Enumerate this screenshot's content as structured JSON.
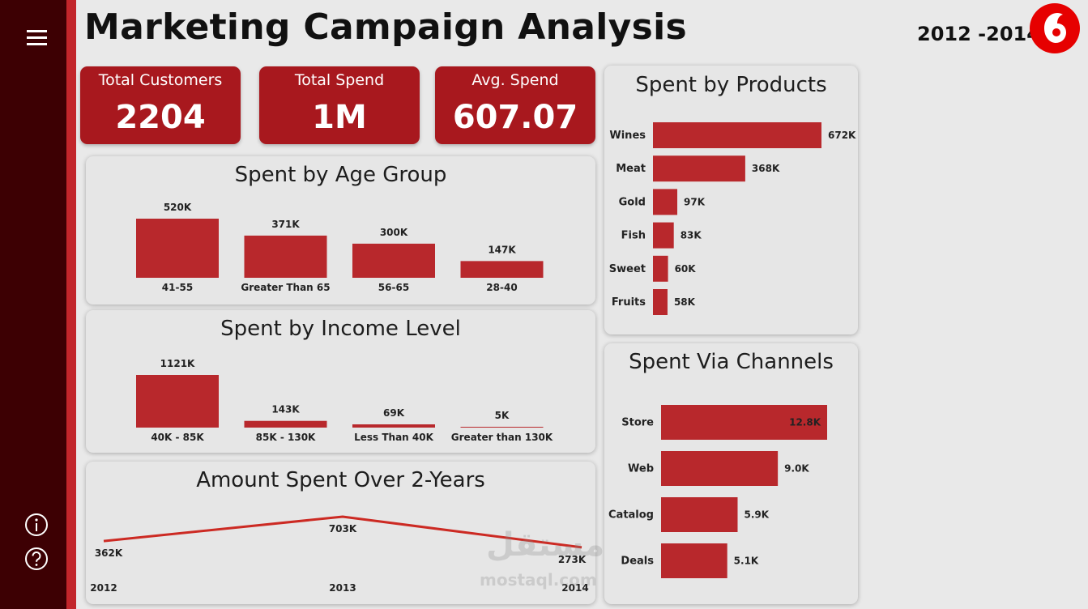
{
  "header": {
    "title": "Marketing Campaign Analysis",
    "year_range": "2012 -2014"
  },
  "kpis": [
    {
      "label": "Total Customers",
      "value": "2204"
    },
    {
      "label": "Total Spend",
      "value": "1M"
    },
    {
      "label": "Avg. Spend",
      "value": "607.07"
    }
  ],
  "colors": {
    "bar": "#b8282c",
    "kpi_bg": "#a8181e",
    "sidebar": "#3d0003",
    "sidebar_edge": "#c2262b",
    "line": "#cc2a23",
    "logo": "#e60000"
  },
  "icons": {
    "menu": "hamburger-menu-icon",
    "info": "info-icon",
    "help": "help-icon",
    "logo": "vodafone-logo"
  },
  "watermark": {
    "arabic": "مستقل",
    "latin": "mostaql.com"
  },
  "chart_data": [
    {
      "id": "age",
      "type": "bar",
      "title": "Spent by Age Group",
      "categories": [
        "41-55",
        "Greater Than 65",
        "56-65",
        "28-40"
      ],
      "values": [
        520,
        371,
        300,
        147
      ],
      "labels": [
        "520K",
        "371K",
        "300K",
        "147K"
      ],
      "unit": "K"
    },
    {
      "id": "income",
      "type": "bar",
      "title": "Spent by Income Level",
      "categories": [
        "40K - 85K",
        "85K - 130K",
        "Less Than 40K",
        "Greater than 130K"
      ],
      "values": [
        1121,
        143,
        69,
        5
      ],
      "labels": [
        "1121K",
        "143K",
        "69K",
        "5K"
      ],
      "unit": "K"
    },
    {
      "id": "years",
      "type": "line",
      "title": "Amount Spent Over 2-Years",
      "x": [
        "2012",
        "2013",
        "2014"
      ],
      "values": [
        362,
        703,
        273
      ],
      "labels": [
        "362K",
        "703K",
        "273K"
      ],
      "unit": "K"
    },
    {
      "id": "products",
      "type": "bar",
      "orientation": "horizontal",
      "title": "Spent by Products",
      "categories": [
        "Wines",
        "Meat",
        "Gold",
        "Fish",
        "Sweet",
        "Fruits"
      ],
      "values": [
        672,
        368,
        97,
        83,
        60,
        58
      ],
      "labels": [
        "672K",
        "368K",
        "97K",
        "83K",
        "60K",
        "58K"
      ],
      "unit": "K"
    },
    {
      "id": "channels",
      "type": "bar",
      "orientation": "horizontal",
      "title": "Spent Via Channels",
      "categories": [
        "Store",
        "Web",
        "Catalog",
        "Deals"
      ],
      "values": [
        12.8,
        9.0,
        5.9,
        5.1
      ],
      "labels": [
        "12.8K",
        "9.0K",
        "5.9K",
        "5.1K"
      ],
      "unit": "K"
    }
  ]
}
